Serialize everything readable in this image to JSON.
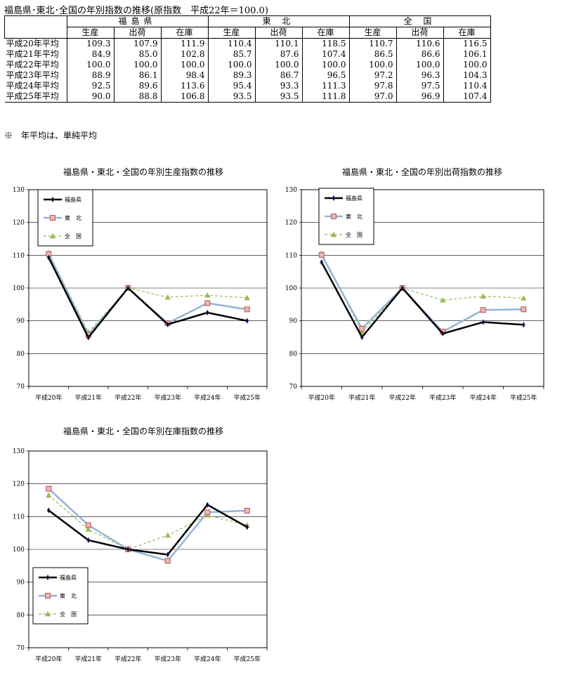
{
  "header": {
    "title": "福島県･東北･全国の年別指数の推移(原指数　平成22年＝100.0)"
  },
  "table": {
    "regions": [
      "福島県",
      "東 北",
      "全 国"
    ],
    "sub_columns": [
      "生産",
      "出荷",
      "在庫"
    ],
    "rows": [
      {
        "label": "平成20年平均",
        "values": [
          "109.3",
          "107.9",
          "111.9",
          "110.4",
          "110.1",
          "118.5",
          "110.7",
          "110.6",
          "116.5"
        ]
      },
      {
        "label": "平成21年平均",
        "values": [
          "84.9",
          "85.0",
          "102.8",
          "85.7",
          "87.6",
          "107.4",
          "86.5",
          "86.6",
          "106.1"
        ]
      },
      {
        "label": "平成22年平均",
        "values": [
          "100.0",
          "100.0",
          "100.0",
          "100.0",
          "100.0",
          "100.0",
          "100.0",
          "100.0",
          "100.0"
        ]
      },
      {
        "label": "平成23年平均",
        "values": [
          "88.9",
          "86.1",
          "98.4",
          "89.3",
          "86.7",
          "96.5",
          "97.2",
          "96.3",
          "104.3"
        ]
      },
      {
        "label": "平成24年平均",
        "values": [
          "92.5",
          "89.6",
          "113.6",
          "95.4",
          "93.3",
          "111.3",
          "97.8",
          "97.5",
          "110.4"
        ]
      },
      {
        "label": "平成25年平均",
        "values": [
          "90.0",
          "88.8",
          "106.8",
          "93.5",
          "93.5",
          "111.8",
          "97.0",
          "96.9",
          "107.4"
        ]
      }
    ],
    "note": "※　年平均は、単純平均"
  },
  "colors": {
    "fukushima": "#000000",
    "tohoku": "#95b3d7",
    "tohoku_marker": "#c0504d",
    "zenkoku": "#9bbb59"
  },
  "chart_data": [
    {
      "type": "line",
      "title": "福島県・東北・全国の年別生産指数の推移",
      "categories": [
        "平成20年",
        "平成21年",
        "平成22年",
        "平成23年",
        "平成24年",
        "平成25年"
      ],
      "ylim": [
        70,
        130
      ],
      "yticks": [
        70,
        80,
        90,
        100,
        110,
        120,
        130
      ],
      "grid": true,
      "legend_position": "top-left",
      "series": [
        {
          "name": "福島県",
          "values": [
            109.3,
            84.9,
            100.0,
            88.9,
            92.5,
            90.0
          ]
        },
        {
          "name": "東　北",
          "values": [
            110.4,
            85.7,
            100.0,
            89.3,
            95.4,
            93.5
          ]
        },
        {
          "name": "全　国",
          "values": [
            110.7,
            86.5,
            100.0,
            97.2,
            97.8,
            97.0
          ]
        }
      ]
    },
    {
      "type": "line",
      "title": "福島県・東北・全国の年別出荷指数の推移",
      "categories": [
        "平成20年",
        "平成21年",
        "平成22年",
        "平成23年",
        "平成24年",
        "平成25年"
      ],
      "ylim": [
        70,
        130
      ],
      "yticks": [
        70,
        80,
        90,
        100,
        110,
        120,
        130
      ],
      "grid": true,
      "legend_position": "top-left",
      "series": [
        {
          "name": "福島県",
          "values": [
            107.9,
            85.0,
            100.0,
            86.1,
            89.6,
            88.8
          ]
        },
        {
          "name": "東　北",
          "values": [
            110.1,
            87.6,
            100.0,
            86.7,
            93.3,
            93.5
          ]
        },
        {
          "name": "全　国",
          "values": [
            110.6,
            86.6,
            100.0,
            96.3,
            97.5,
            96.9
          ]
        }
      ]
    },
    {
      "type": "line",
      "title": "福島県・東北・全国の年別在庫指数の推移",
      "categories": [
        "平成20年",
        "平成21年",
        "平成22年",
        "平成23年",
        "平成24年",
        "平成25年"
      ],
      "ylim": [
        70,
        130
      ],
      "yticks": [
        70,
        80,
        90,
        100,
        110,
        120,
        130
      ],
      "grid": true,
      "legend_position": "bottom-left",
      "series": [
        {
          "name": "福島県",
          "values": [
            111.9,
            102.8,
            100.0,
            98.4,
            113.6,
            106.8
          ]
        },
        {
          "name": "東　北",
          "values": [
            118.5,
            107.4,
            100.0,
            96.5,
            111.3,
            111.8
          ]
        },
        {
          "name": "全　国",
          "values": [
            116.5,
            106.1,
            100.0,
            104.3,
            110.4,
            107.4
          ]
        }
      ]
    }
  ]
}
